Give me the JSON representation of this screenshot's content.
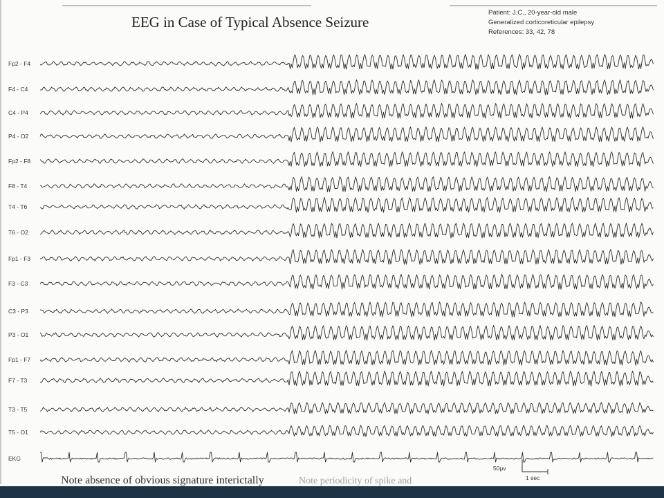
{
  "title": "EEG in Case of Typical Absence Seizure",
  "patient": {
    "line1": "Patient: J.C., 20-year-old male",
    "line2": "Generalized corticoreticular epilepsy",
    "line3": "References: 33, 42, 78"
  },
  "channels": [
    "Fp2 - F4",
    "F4 - C4",
    "C4 - P4",
    "P4 - O2",
    "Fp2 - F8",
    "F8 - T4",
    "T4 - T6",
    "T6 - O2",
    "Fp1 - F3",
    "F3 - C3",
    "C3 - P3",
    "P3 - O1",
    "Fp1 - F7",
    "F7 - T3",
    "T3 - T5",
    "T5 - O1",
    "EKG"
  ],
  "scale": {
    "amplitude": "50µv",
    "time": "1 sec"
  },
  "note": "Note absence of obvious signature interictally",
  "note_partial": "Note periodicity of spike and"
}
